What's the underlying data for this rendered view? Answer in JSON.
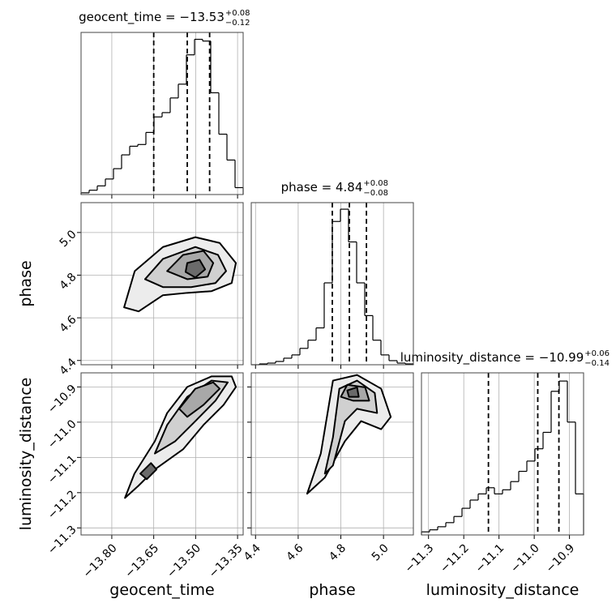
{
  "chart_data": {
    "type": "corner",
    "hist_color": "#000000",
    "quantile_color": "#000000",
    "contour_color": "#000000",
    "level_fills": [
      "#ececec",
      "#d0d0d0",
      "#a8a8a8",
      "#6a6a6a"
    ],
    "grid": true,
    "variables": [
      {
        "name": "geocent_time",
        "title": "geocent_time = −13.53",
        "title_plus": "+0.08",
        "title_minus": "−0.12",
        "quantiles": [
          -13.65,
          -13.53,
          -13.45
        ],
        "lim": [
          -13.91,
          -13.33
        ],
        "ticks": [
          {
            "value": -13.8,
            "label": "−13.80"
          },
          {
            "value": -13.65,
            "label": "−13.65"
          },
          {
            "value": -13.5,
            "label": "−13.50"
          },
          {
            "value": -13.35,
            "label": "−13.35"
          }
        ],
        "bins": [
          -13.91,
          -13.881,
          -13.852,
          -13.823,
          -13.794,
          -13.765,
          -13.736,
          -13.707,
          -13.678,
          -13.649,
          -13.62,
          -13.591,
          -13.562,
          -13.533,
          -13.504,
          -13.475,
          -13.446,
          -13.417,
          -13.388,
          -13.359,
          -13.33
        ],
        "counts": [
          2,
          5,
          10,
          18,
          30,
          46,
          56,
          58,
          72,
          90,
          95,
          112,
          128,
          162,
          180,
          178,
          118,
          70,
          40,
          8
        ],
        "hist_ylim": [
          0,
          188
        ]
      },
      {
        "name": "phase",
        "title": "phase = 4.84",
        "title_plus": "+0.08",
        "title_minus": "−0.08",
        "quantiles": [
          4.76,
          4.84,
          4.92
        ],
        "lim": [
          4.38,
          5.14
        ],
        "ticks": [
          4.4,
          4.6,
          4.8,
          {
            "value": 5.0,
            "label": "5.0"
          }
        ],
        "bins": [
          4.38,
          4.418,
          4.456,
          4.494,
          4.532,
          4.57,
          4.608,
          4.646,
          4.684,
          4.722,
          4.76,
          4.798,
          4.836,
          4.874,
          4.912,
          4.95,
          4.988,
          5.026,
          5.064,
          5.102,
          5.14
        ],
        "counts": [
          0,
          1,
          2,
          4,
          8,
          12,
          20,
          30,
          45,
          100,
          175,
          190,
          150,
          100,
          60,
          30,
          12,
          5,
          2,
          1
        ],
        "hist_ylim": [
          0,
          198
        ]
      },
      {
        "name": "luminosity_distance",
        "title": "luminosity_distance = −10.99",
        "title_plus": "+0.06",
        "title_minus": "−0.14",
        "quantiles": [
          -11.13,
          -10.99,
          -10.93
        ],
        "lim": [
          -11.32,
          -10.86
        ],
        "ticks": [
          {
            "value": -11.3,
            "label": "−11.3"
          },
          {
            "value": -11.2,
            "label": "−11.2"
          },
          {
            "value": -11.1,
            "label": "−11.1"
          },
          {
            "value": -11.0,
            "label": "−11.0"
          },
          {
            "value": -10.9,
            "label": "−10.9"
          }
        ],
        "bins": [
          -11.32,
          -11.297,
          -11.274,
          -11.251,
          -11.228,
          -11.205,
          -11.182,
          -11.159,
          -11.136,
          -11.113,
          -11.09,
          -11.067,
          -11.044,
          -11.021,
          -10.998,
          -10.975,
          -10.952,
          -10.929,
          -10.906,
          -10.883,
          -10.86
        ],
        "counts": [
          3,
          5,
          8,
          12,
          18,
          26,
          34,
          40,
          46,
          40,
          44,
          52,
          62,
          72,
          84,
          100,
          140,
          150,
          110,
          40
        ],
        "hist_ylim": [
          0,
          158
        ]
      }
    ],
    "pairs": [
      {
        "contours": [
          {
            "x": [
              -13.756,
              -13.718,
              -13.617,
              -13.501,
              -13.414,
              -13.356,
              -13.371,
              -13.443,
              -13.53,
              -13.617,
              -13.704
            ],
            "y": [
              4.649,
              4.819,
              4.932,
              4.978,
              4.951,
              4.857,
              4.763,
              4.725,
              4.717,
              4.706,
              4.63
            ]
          },
          {
            "x": [
              -13.681,
              -13.617,
              -13.501,
              -13.42,
              -13.391,
              -13.429,
              -13.516,
              -13.617
            ],
            "y": [
              4.781,
              4.876,
              4.932,
              4.895,
              4.819,
              4.763,
              4.744,
              4.744
            ]
          },
          {
            "x": [
              -13.602,
              -13.545,
              -13.472,
              -13.437,
              -13.457,
              -13.53
            ],
            "y": [
              4.819,
              4.895,
              4.914,
              4.857,
              4.793,
              4.781
            ]
          },
          {
            "x": [
              -13.53,
              -13.486,
              -13.466,
              -13.501,
              -13.536
            ],
            "y": [
              4.857,
              4.872,
              4.827,
              4.789,
              4.815
            ]
          }
        ]
      },
      {
        "contours": [
          {
            "x": [
              -13.753,
              -13.719,
              -13.646,
              -13.602,
              -13.53,
              -13.443,
              -13.371,
              -13.356,
              -13.4,
              -13.472,
              -13.545,
              -13.646,
              -13.704
            ],
            "y": [
              -11.215,
              -11.146,
              -11.054,
              -10.974,
              -10.9,
              -10.87,
              -10.87,
              -10.9,
              -10.951,
              -11.008,
              -11.077,
              -11.134,
              -11.18
            ]
          },
          {
            "x": [
              -13.646,
              -13.602,
              -13.53,
              -13.443,
              -13.385,
              -13.429,
              -13.501,
              -13.573
            ],
            "y": [
              -11.089,
              -11.008,
              -10.928,
              -10.882,
              -10.887,
              -10.939,
              -10.997,
              -11.054
            ]
          },
          {
            "x": [
              -13.559,
              -13.501,
              -13.437,
              -13.414,
              -13.472,
              -13.53
            ],
            "y": [
              -10.962,
              -10.905,
              -10.887,
              -10.905,
              -10.951,
              -10.985
            ]
          },
          {
            "x": [
              -13.698,
              -13.66,
              -13.64,
              -13.675
            ],
            "y": [
              -11.146,
              -11.116,
              -11.134,
              -11.162
            ]
          }
        ]
      },
      {
        "contours": [
          {
            "x": [
              4.642,
              4.706,
              4.744,
              4.763,
              4.876,
              4.989,
              5.034,
              4.989,
              4.895,
              4.819,
              4.725
            ],
            "y": [
              -11.203,
              -11.089,
              -10.951,
              -10.882,
              -10.866,
              -10.905,
              -10.985,
              -11.02,
              -10.997,
              -11.054,
              -11.157
            ]
          },
          {
            "x": [
              4.725,
              4.763,
              4.793,
              4.876,
              4.959,
              4.97,
              4.876,
              4.819,
              4.763
            ],
            "y": [
              -11.146,
              -11.043,
              -10.905,
              -10.882,
              -10.917,
              -10.974,
              -10.962,
              -10.997,
              -11.123
            ]
          },
          {
            "x": [
              4.8,
              4.83,
              4.914,
              4.933,
              4.857
            ],
            "y": [
              -10.928,
              -10.894,
              -10.901,
              -10.939,
              -10.939
            ]
          },
          {
            "x": [
              4.83,
              4.876,
              4.884,
              4.838
            ],
            "y": [
              -10.91,
              -10.901,
              -10.928,
              -10.928
            ]
          }
        ]
      }
    ]
  }
}
